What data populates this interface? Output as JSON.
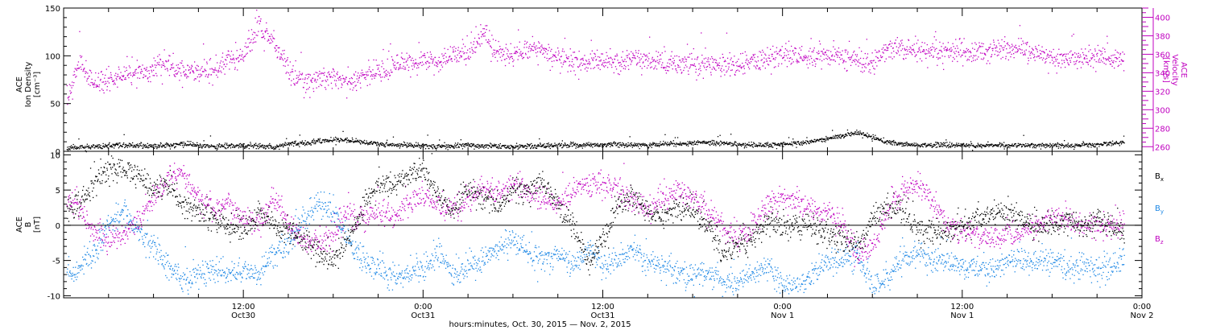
{
  "chart_data": [
    {
      "type": "scatter",
      "panel": "plasma",
      "ylabel_lines": [
        "ACE",
        "Ion Density"
      ],
      "ylabel_unit": "[cm⁻³]",
      "ylim": [
        0,
        150
      ],
      "yticks": [
        0,
        50,
        100,
        150
      ],
      "y2label_lines": [
        "ACE",
        "Velocity"
      ],
      "y2label_unit": "[km/s]",
      "y2lim": [
        255,
        410
      ],
      "y2ticks": [
        260,
        280,
        300,
        320,
        340,
        360,
        380,
        400
      ],
      "x_hours": [
        0,
        72
      ],
      "series": [
        {
          "name": "",
          "axis": "left",
          "color": "#000000",
          "x": [
            0.2,
            1,
            2,
            3,
            4,
            5,
            6,
            7,
            8,
            9,
            10,
            11,
            12,
            13,
            14,
            15,
            16,
            17,
            18,
            19,
            20,
            21,
            22,
            23,
            24,
            25,
            26,
            27,
            28,
            29,
            30,
            31,
            32,
            33,
            34,
            35,
            36,
            37,
            38,
            39,
            40,
            41,
            42,
            43,
            44,
            45,
            46,
            47,
            48,
            49,
            50,
            51,
            52,
            53,
            54,
            55,
            56,
            57,
            58,
            59,
            60,
            61,
            62,
            63,
            64,
            65,
            66,
            67,
            68,
            69,
            70,
            70.8
          ],
          "values": [
            4,
            5,
            5,
            6,
            7,
            6,
            6,
            7,
            8,
            7,
            6,
            6,
            6,
            6,
            5,
            8,
            9,
            11,
            13,
            12,
            10,
            8,
            7,
            7,
            6,
            5,
            6,
            7,
            6,
            6,
            5,
            6,
            6,
            7,
            7,
            7,
            7,
            8,
            7,
            7,
            8,
            8,
            9,
            10,
            9,
            8,
            7,
            7,
            8,
            9,
            11,
            14,
            17,
            20,
            15,
            10,
            8,
            7,
            7,
            7,
            7,
            6,
            7,
            7,
            7,
            7,
            7,
            6,
            7,
            8,
            9,
            9
          ]
        },
        {
          "name": "",
          "axis": "right",
          "color": "#c000c0",
          "x": [
            0.2,
            1,
            2,
            3,
            4,
            5,
            6,
            7,
            8,
            9,
            10,
            11,
            12,
            13,
            14,
            15,
            16,
            17,
            18,
            19,
            20,
            21,
            22,
            23,
            24,
            25,
            26,
            27,
            28,
            29,
            30,
            31,
            32,
            33,
            34,
            35,
            36,
            37,
            38,
            39,
            40,
            41,
            42,
            43,
            44,
            45,
            46,
            47,
            48,
            49,
            50,
            51,
            52,
            53,
            54,
            55,
            56,
            57,
            58,
            59,
            60,
            61,
            62,
            63,
            64,
            65,
            66,
            67,
            68,
            69,
            70,
            70.8
          ],
          "values": [
            310,
            350,
            330,
            332,
            338,
            340,
            346,
            346,
            342,
            344,
            342,
            356,
            358,
            392,
            375,
            342,
            330,
            335,
            334,
            332,
            338,
            340,
            348,
            352,
            356,
            350,
            362,
            360,
            382,
            362,
            358,
            366,
            364,
            358,
            352,
            352,
            354,
            350,
            355,
            352,
            352,
            350,
            352,
            348,
            350,
            348,
            352,
            356,
            360,
            362,
            358,
            360,
            358,
            354,
            350,
            366,
            366,
            364,
            364,
            363,
            362,
            362,
            363,
            366,
            364,
            362,
            358,
            356,
            356,
            358,
            356,
            352
          ]
        }
      ]
    },
    {
      "type": "scatter",
      "panel": "magnetic-field",
      "ylabel_lines": [
        "ACE",
        "B"
      ],
      "ylabel_unit": "[nT]",
      "ylim": [
        -10.3,
        10.5
      ],
      "yticks": [
        -10,
        -5,
        0,
        5,
        10
      ],
      "zero_line": true,
      "x_hours": [
        0,
        72
      ],
      "series": [
        {
          "name": "B",
          "subscript": "x",
          "color": "#000000",
          "x": [
            0.2,
            1,
            2,
            3,
            4,
            5,
            6,
            7,
            8,
            9,
            10,
            11,
            12,
            13,
            14,
            15,
            16,
            17,
            18,
            19,
            20,
            21,
            22,
            23,
            24,
            25,
            26,
            27,
            28,
            29,
            30,
            31,
            32,
            33,
            34,
            35,
            36,
            37,
            38,
            39,
            40,
            41,
            42,
            43,
            44,
            45,
            46,
            47,
            48,
            49,
            50,
            51,
            52,
            53,
            54,
            55,
            56,
            57,
            58,
            59,
            60,
            61,
            62,
            63,
            64,
            65,
            66,
            67,
            68,
            69,
            70,
            70.8
          ],
          "values": [
            2,
            3,
            6,
            8,
            8,
            7,
            5,
            6,
            3,
            2,
            1,
            0,
            -1,
            2,
            0,
            -1,
            -2,
            -4,
            -5,
            -2,
            3,
            6,
            6,
            7,
            8,
            4,
            2,
            5,
            4,
            3,
            5,
            5,
            6,
            3,
            0,
            -5,
            -2,
            3,
            4,
            2,
            1,
            3,
            2,
            0,
            -4,
            -3,
            -2,
            1,
            0,
            0,
            0,
            -1,
            -2,
            -3,
            1,
            3,
            2,
            0,
            -1,
            -1,
            0,
            1,
            2,
            2,
            1,
            0,
            0,
            1,
            0,
            1,
            0,
            -1
          ]
        },
        {
          "name": "B",
          "subscript": "y",
          "color": "#1e88e5",
          "x": [
            0.2,
            1,
            2,
            3,
            4,
            5,
            6,
            7,
            8,
            9,
            10,
            11,
            12,
            13,
            14,
            15,
            16,
            17,
            18,
            19,
            20,
            21,
            22,
            23,
            24,
            25,
            26,
            27,
            28,
            29,
            30,
            31,
            32,
            33,
            34,
            35,
            36,
            37,
            38,
            39,
            40,
            41,
            42,
            43,
            44,
            45,
            46,
            47,
            48,
            49,
            50,
            51,
            52,
            53,
            54,
            55,
            56,
            57,
            58,
            59,
            60,
            61,
            62,
            63,
            64,
            65,
            66,
            67,
            68,
            69,
            70,
            70.8
          ],
          "values": [
            -7,
            -6,
            -4,
            0,
            2,
            -1,
            -3,
            -6,
            -8,
            -7,
            -6,
            -7,
            -6,
            -7,
            -4,
            -3,
            1,
            3,
            2,
            -2,
            -5,
            -6,
            -7,
            -7,
            -6,
            -4,
            -7,
            -6,
            -5,
            -3,
            -2,
            -4,
            -5,
            -4,
            -6,
            -3,
            -6,
            -5,
            -3,
            -5,
            -6,
            -7,
            -7,
            -7,
            -8,
            -8,
            -7,
            -6,
            -8,
            -9,
            -7,
            -5,
            -5,
            -4,
            -9,
            -7,
            -5,
            -4,
            -5,
            -5,
            -6,
            -6,
            -6,
            -5,
            -5,
            -5,
            -5,
            -6,
            -6,
            -6,
            -6,
            -4
          ]
        },
        {
          "name": "B",
          "subscript": "z",
          "color": "#c000c0",
          "x": [
            0.2,
            1,
            2,
            3,
            4,
            5,
            6,
            7,
            8,
            9,
            10,
            11,
            12,
            13,
            14,
            15,
            16,
            17,
            18,
            19,
            20,
            21,
            22,
            23,
            24,
            25,
            26,
            27,
            28,
            29,
            30,
            31,
            32,
            33,
            34,
            35,
            36,
            37,
            38,
            39,
            40,
            41,
            42,
            43,
            44,
            45,
            46,
            47,
            48,
            49,
            50,
            51,
            52,
            53,
            54,
            55,
            56,
            57,
            58,
            59,
            60,
            61,
            62,
            63,
            64,
            65,
            66,
            67,
            68,
            69,
            70,
            70.8
          ],
          "values": [
            4,
            3,
            -1,
            -2,
            -1,
            1,
            4,
            7,
            7,
            4,
            2,
            3,
            1,
            0,
            4,
            0,
            -2,
            -3,
            -1,
            2,
            1,
            2,
            1,
            3,
            4,
            3,
            2,
            4,
            5,
            5,
            6,
            5,
            4,
            3,
            5,
            6,
            6,
            5,
            4,
            2,
            4,
            5,
            4,
            2,
            0,
            -2,
            0,
            3,
            4,
            3,
            2,
            2,
            0,
            -4,
            -3,
            2,
            5,
            6,
            3,
            0,
            -1,
            -1,
            -2,
            -1,
            -1,
            0,
            1,
            1,
            0,
            0,
            0,
            1
          ]
        }
      ]
    }
  ],
  "time_axis": {
    "major_ticks": [
      {
        "hour": 0,
        "label1": "",
        "label2": ""
      },
      {
        "hour": 12,
        "label1": "12:00",
        "label2": "Oct30"
      },
      {
        "hour": 24,
        "label1": "0:00",
        "label2": "Oct31"
      },
      {
        "hour": 36,
        "label1": "12:00",
        "label2": "Oct31"
      },
      {
        "hour": 48,
        "label1": "0:00",
        "label2": "Nov 1"
      },
      {
        "hour": 60,
        "label1": "12:00",
        "label2": "Nov 1"
      },
      {
        "hour": 72,
        "label1": "0:00",
        "label2": "Nov 2"
      }
    ],
    "title": "hours:minutes, Oct. 30, 2015 — Nov.  2, 2015"
  }
}
